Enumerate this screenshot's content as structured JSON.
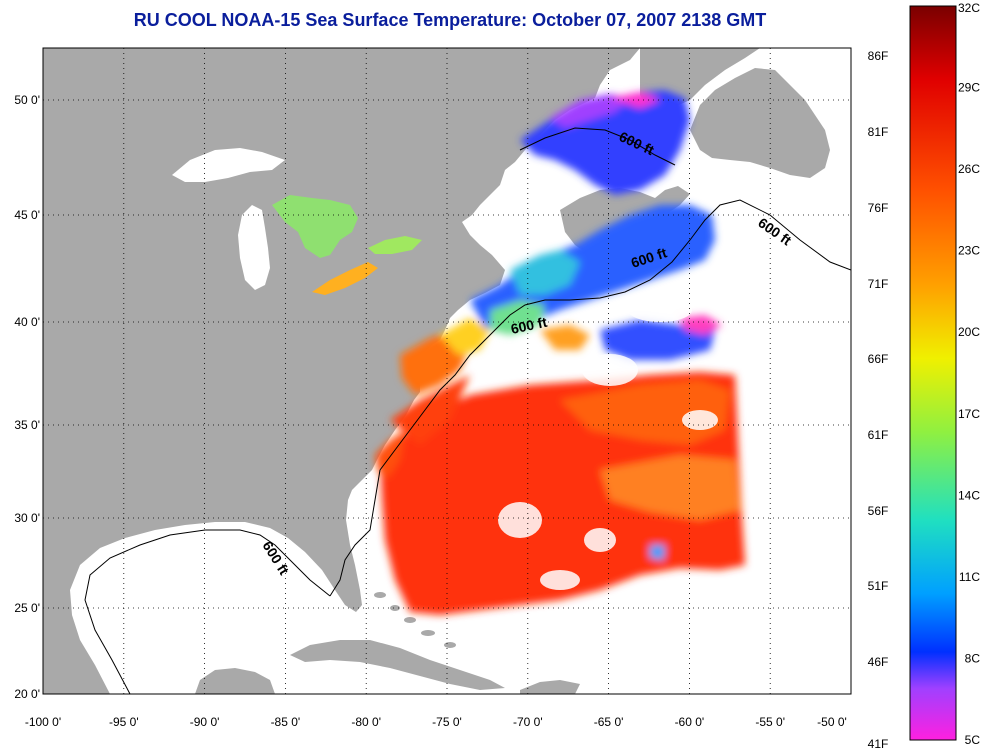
{
  "title": "RU COOL  NOAA-15  Sea Surface Temperature:  October 07, 2007 2138 GMT",
  "map": {
    "lon_ticks": [
      "-100 0'",
      "-95 0'",
      "-90 0'",
      "-85 0'",
      "-80 0'",
      "-75 0'",
      "-70 0'",
      "-65 0'",
      "-60 0'",
      "-55 0'",
      "-50 0'"
    ],
    "lat_ticks": [
      "50 0'",
      "45 0'",
      "40 0'",
      "35 0'",
      "30 0'",
      "25 0'",
      "20 0'"
    ],
    "isobath_label": "600 ft",
    "colors": {
      "land": "#a9a9a9",
      "ocean_nodata": "#ffffff"
    }
  },
  "colorbar": {
    "celsius_labels": [
      "32C",
      "29C",
      "26C",
      "23C",
      "20C",
      "17C",
      "14C",
      "11C",
      "8C",
      "5C"
    ],
    "fahrenheit_labels": [
      "86F",
      "81F",
      "76F",
      "71F",
      "66F",
      "61F",
      "56F",
      "51F",
      "46F",
      "41F"
    ],
    "colors": [
      "#7a0000",
      "#e00000",
      "#ff5000",
      "#ffa000",
      "#f0f000",
      "#90f040",
      "#20e0c0",
      "#00a0ff",
      "#0030ff",
      "#a040ff",
      "#ff20e0"
    ]
  }
}
